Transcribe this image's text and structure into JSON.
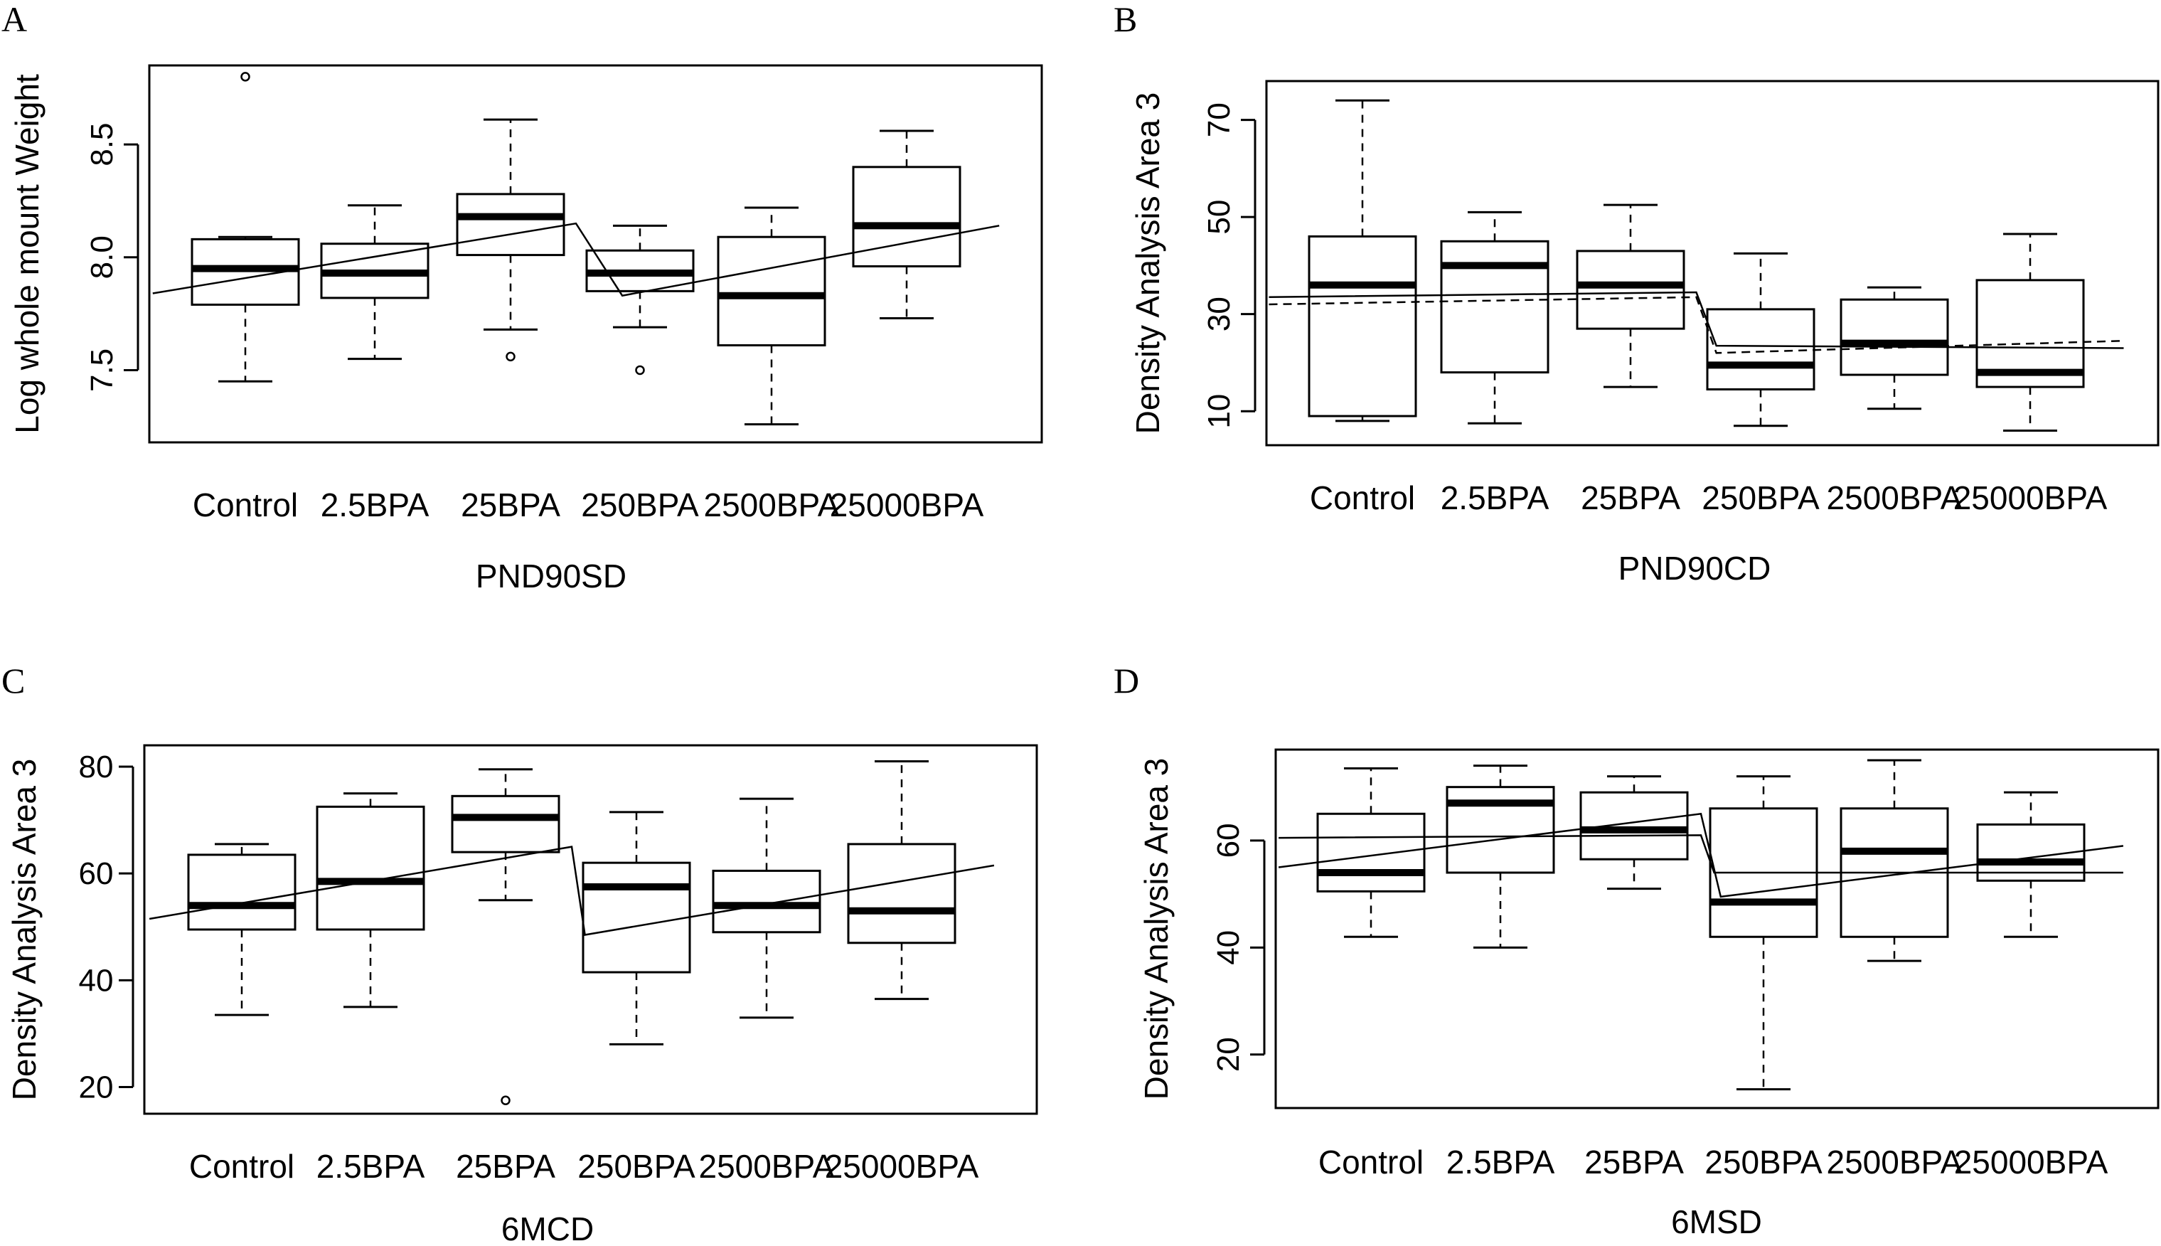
{
  "chart_data": [
    {
      "type": "box",
      "panel_label": "A",
      "xlabel": "PND90SD",
      "ylabel": "Log whole mount Weight",
      "ylim": [
        7.18,
        8.85
      ],
      "yticks": [
        7.5,
        8.0,
        8.5
      ],
      "ytick_labels": [
        "7.5",
        "8.0",
        "8.5"
      ],
      "categories": [
        "Control",
        "2.5BPA",
        "25BPA",
        "250BPA",
        "2500BPA",
        "25000BPA"
      ],
      "boxes": [
        {
          "whisker_low": 7.45,
          "q1": 7.79,
          "median": 7.95,
          "q3": 8.08,
          "whisker_high": 8.09,
          "outliers": [
            8.8
          ]
        },
        {
          "whisker_low": 7.55,
          "q1": 7.82,
          "median": 7.93,
          "q3": 8.06,
          "whisker_high": 8.23,
          "outliers": []
        },
        {
          "whisker_low": 7.68,
          "q1": 8.01,
          "median": 8.18,
          "q3": 8.28,
          "whisker_high": 8.61,
          "outliers": [
            7.56
          ]
        },
        {
          "whisker_low": 7.69,
          "q1": 7.85,
          "median": 7.93,
          "q3": 8.03,
          "whisker_high": 8.14,
          "outliers": [
            7.5
          ]
        },
        {
          "whisker_low": 7.26,
          "q1": 7.61,
          "median": 7.83,
          "q3": 8.09,
          "whisker_high": 8.22,
          "outliers": []
        },
        {
          "whisker_low": 7.73,
          "q1": 7.96,
          "median": 8.14,
          "q3": 8.4,
          "whisker_high": 8.56,
          "outliers": []
        }
      ],
      "fit_lines": [
        {
          "style": "solid",
          "points": [
            [
              0.3,
              7.84
            ],
            [
              3.5,
              8.15
            ],
            [
              3.85,
              7.83
            ],
            [
              6.7,
              8.14
            ]
          ]
        }
      ]
    },
    {
      "type": "box",
      "panel_label": "B",
      "xlabel": "PND90CD",
      "ylabel": "Density Analysis Area 3",
      "ylim": [
        3,
        78
      ],
      "yticks": [
        10,
        30,
        50,
        70
      ],
      "ytick_labels": [
        "10",
        "30",
        "50",
        "70"
      ],
      "categories": [
        "Control",
        "2.5BPA",
        "25BPA",
        "250BPA",
        "2500BPA",
        "25000BPA"
      ],
      "boxes": [
        {
          "whisker_low": 8,
          "q1": 9,
          "median": 36,
          "q3": 46,
          "whisker_high": 74,
          "outliers": []
        },
        {
          "whisker_low": 7.5,
          "q1": 18,
          "median": 40,
          "q3": 45,
          "whisker_high": 51,
          "outliers": []
        },
        {
          "whisker_low": 15,
          "q1": 27,
          "median": 36,
          "q3": 43,
          "whisker_high": 52.5,
          "outliers": []
        },
        {
          "whisker_low": 7,
          "q1": 14.5,
          "median": 19.5,
          "q3": 31,
          "whisker_high": 42.5,
          "outliers": []
        },
        {
          "whisker_low": 10.5,
          "q1": 17.5,
          "median": 24,
          "q3": 33,
          "whisker_high": 35.5,
          "outliers": []
        },
        {
          "whisker_low": 6,
          "q1": 15,
          "median": 18,
          "q3": 37,
          "whisker_high": 46.5,
          "outliers": []
        }
      ],
      "fit_lines": [
        {
          "style": "solid",
          "points": [
            [
              0.3,
              33.5
            ],
            [
              3.5,
              34.5
            ],
            [
              3.65,
              23.5
            ],
            [
              6.7,
              23.0
            ]
          ]
        },
        {
          "style": "dashed",
          "points": [
            [
              0.3,
              32.0
            ],
            [
              3.5,
              33.5
            ],
            [
              3.65,
              22.0
            ],
            [
              6.7,
              24.5
            ]
          ]
        }
      ]
    },
    {
      "type": "box",
      "panel_label": "C",
      "xlabel": "6MCD",
      "ylabel": "Density Analysis Area 3",
      "ylim": [
        15,
        84
      ],
      "yticks": [
        20,
        40,
        60,
        80
      ],
      "ytick_labels": [
        "20",
        "40",
        "60",
        "80"
      ],
      "categories": [
        "Control",
        "2.5BPA",
        "25BPA",
        "250BPA",
        "2500BPA",
        "25000BPA"
      ],
      "boxes": [
        {
          "whisker_low": 33.5,
          "q1": 49.5,
          "median": 54,
          "q3": 63.5,
          "whisker_high": 65.5,
          "outliers": []
        },
        {
          "whisker_low": 35,
          "q1": 49.5,
          "median": 58.5,
          "q3": 72.5,
          "whisker_high": 75,
          "outliers": []
        },
        {
          "whisker_low": 55,
          "q1": 64,
          "median": 70.5,
          "q3": 74.5,
          "whisker_high": 79.5,
          "outliers": [
            17.5
          ]
        },
        {
          "whisker_low": 28,
          "q1": 41.5,
          "median": 57.5,
          "q3": 62,
          "whisker_high": 71.5,
          "outliers": []
        },
        {
          "whisker_low": 33,
          "q1": 49,
          "median": 54,
          "q3": 60.5,
          "whisker_high": 74,
          "outliers": []
        },
        {
          "whisker_low": 36.5,
          "q1": 47,
          "median": 53,
          "q3": 65.5,
          "whisker_high": 81,
          "outliers": []
        }
      ],
      "fit_lines": [
        {
          "style": "solid",
          "points": [
            [
              0.3,
              51.5
            ],
            [
              3.5,
              65.0
            ],
            [
              3.6,
              48.5
            ],
            [
              6.7,
              61.5
            ]
          ]
        }
      ]
    },
    {
      "type": "box",
      "panel_label": "D",
      "xlabel": "6MSD",
      "ylabel": "Density Analysis Area 3",
      "ylim": [
        10,
        77
      ],
      "yticks": [
        20,
        40,
        60
      ],
      "ytick_labels": [
        "20",
        "40",
        "60"
      ],
      "categories": [
        "Control",
        "2.5BPA",
        "25BPA",
        "250BPA",
        "2500BPA",
        "25000BPA"
      ],
      "boxes": [
        {
          "whisker_low": 42,
          "q1": 50.5,
          "median": 54,
          "q3": 65,
          "whisker_high": 73.5,
          "outliers": []
        },
        {
          "whisker_low": 40,
          "q1": 54,
          "median": 67,
          "q3": 70,
          "whisker_high": 74,
          "outliers": []
        },
        {
          "whisker_low": 51,
          "q1": 56.5,
          "median": 62,
          "q3": 69,
          "whisker_high": 72,
          "outliers": []
        },
        {
          "whisker_low": 13.5,
          "q1": 42,
          "median": 48.5,
          "q3": 66,
          "whisker_high": 72,
          "outliers": []
        },
        {
          "whisker_low": 37.5,
          "q1": 42,
          "median": 58,
          "q3": 66,
          "whisker_high": 75,
          "outliers": []
        },
        {
          "whisker_low": 42,
          "q1": 52.5,
          "median": 56,
          "q3": 63,
          "whisker_high": 69,
          "outliers": []
        }
      ],
      "fit_lines": [
        {
          "style": "solid",
          "points": [
            [
              0.3,
              60.5
            ],
            [
              3.5,
              61.0
            ],
            [
              3.6,
              54.0
            ],
            [
              6.7,
              54.0
            ]
          ]
        },
        {
          "style": "solid",
          "points": [
            [
              0.3,
              55.0
            ],
            [
              3.5,
              65.0
            ],
            [
              3.65,
              49.5
            ],
            [
              6.7,
              59.0
            ]
          ]
        }
      ]
    }
  ]
}
